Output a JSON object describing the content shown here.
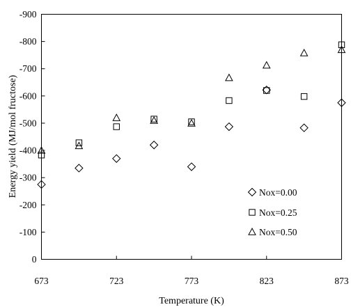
{
  "chart_data": {
    "type": "scatter",
    "xlabel": "Temperature (K)",
    "ylabel": "Energy yield (MJ/mol fructose)",
    "xlim": [
      673,
      873
    ],
    "ylim": [
      0,
      -900
    ],
    "x_ticks": [
      673,
      723,
      773,
      823,
      873
    ],
    "y_ticks": [
      0,
      -100,
      -200,
      -300,
      -400,
      -500,
      -600,
      -700,
      -800,
      -900
    ],
    "x_tick_labels": [
      "673",
      "723",
      "773",
      "823",
      "873"
    ],
    "y_tick_labels": [
      "0",
      "-100",
      "-200",
      "-300",
      "-400",
      "-500",
      "-600",
      "-700",
      "-800",
      "-900"
    ],
    "grid": false,
    "legend_position": "bottom-right",
    "series": [
      {
        "name": "Nox=0.00",
        "marker": "diamond",
        "x": [
          673,
          698,
          723,
          748,
          773,
          798,
          823,
          848,
          873
        ],
        "y": [
          -275,
          -335,
          -370,
          -420,
          -340,
          -487,
          -622,
          -483,
          -575
        ]
      },
      {
        "name": "Nox=0.25",
        "marker": "square",
        "x": [
          673,
          698,
          723,
          748,
          773,
          798,
          823,
          848,
          873
        ],
        "y": [
          -383,
          -428,
          -487,
          -515,
          -505,
          -583,
          -620,
          -598,
          -788
        ]
      },
      {
        "name": "Nox=0.50",
        "marker": "triangle",
        "x": [
          673,
          698,
          723,
          748,
          773,
          798,
          823,
          848,
          873
        ],
        "y": [
          -400,
          -417,
          -520,
          -510,
          -500,
          -667,
          -713,
          -758,
          -770
        ]
      }
    ]
  }
}
